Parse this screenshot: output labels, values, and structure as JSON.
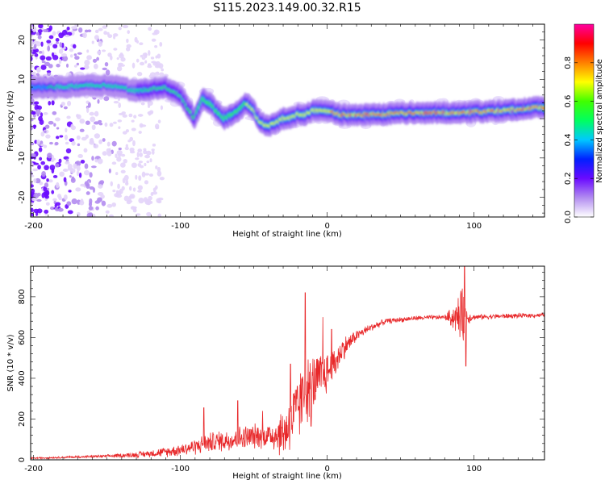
{
  "page_title": "S115.2023.149.00.32.R15",
  "chart_data": [
    {
      "type": "heatmap",
      "name": "spectrogram",
      "xlabel": "Height of straight line (km)",
      "ylabel": "Frequency (Hz)",
      "xlim": [
        -202,
        148
      ],
      "ylim": [
        -25,
        24
      ],
      "xticks": [
        -200,
        -100,
        0,
        100
      ],
      "yticks": [
        -20,
        -10,
        0,
        10,
        20
      ],
      "grid": false,
      "ridge": {
        "x": [
          -195,
          -180,
          -165,
          -150,
          -140,
          -130,
          -120,
          -110,
          -100,
          -95,
          -90,
          -85,
          -80,
          -75,
          -70,
          -65,
          -60,
          -55,
          -50,
          -45,
          -40,
          -35,
          -30,
          -25,
          -20,
          -15,
          -10,
          -5,
          0,
          10,
          30,
          60,
          90,
          120,
          148
        ],
        "y": [
          8,
          8,
          8.5,
          8.5,
          8,
          7,
          7.5,
          8,
          6,
          3,
          0,
          5,
          4,
          2,
          0,
          1,
          2,
          4,
          2,
          -1,
          -2,
          -1,
          0,
          0,
          1,
          1,
          2,
          2,
          2,
          1,
          1,
          1.5,
          1.5,
          2,
          3
        ]
      },
      "colorbar": {
        "label": "Normalized spectral amplitude",
        "range": [
          0,
          1
        ],
        "ticks": [
          "0.0",
          "0.2",
          "0.4",
          "0.6",
          "0.8"
        ],
        "tick_values": [
          0,
          0.2,
          0.4,
          0.6,
          0.8
        ],
        "colors": [
          "#ffffff",
          "#b28cf0",
          "#6a0aff",
          "#0020ff",
          "#00c8ff",
          "#00ff60",
          "#40ff00",
          "#ffff00",
          "#ff8000",
          "#ff0000",
          "#ff00a0"
        ]
      }
    },
    {
      "type": "line",
      "name": "snr",
      "xlabel": "Height of straight line (km)",
      "ylabel": "SNR (10 * v/v)",
      "xlim": [
        -202,
        148
      ],
      "ylim": [
        0,
        950
      ],
      "xticks": [
        -200,
        -100,
        0,
        100
      ],
      "yticks": [
        0,
        200,
        400,
        600,
        800
      ],
      "grid": false,
      "color": "#e8282a",
      "trend": {
        "x": [
          -202,
          -190,
          -170,
          -150,
          -130,
          -110,
          -100,
          -90,
          -80,
          -70,
          -60,
          -50,
          -40,
          -30,
          -25,
          -20,
          -15,
          -10,
          -5,
          0,
          5,
          10,
          20,
          30,
          40,
          60,
          80,
          90,
          95,
          100,
          120,
          148
        ],
        "y": [
          8,
          10,
          14,
          18,
          25,
          38,
          50,
          65,
          85,
          95,
          105,
          115,
          120,
          130,
          180,
          250,
          330,
          370,
          400,
          430,
          470,
          540,
          610,
          650,
          680,
          695,
          700,
          700,
          700,
          700,
          705,
          710
        ]
      },
      "noise": {
        "x": [
          -202,
          -150,
          -120,
          -100,
          -80,
          -60,
          -40,
          -30,
          -20,
          -10,
          0,
          10,
          20,
          40,
          80,
          88,
          92,
          96,
          100,
          148
        ],
        "amplitude": [
          4,
          8,
          20,
          35,
          55,
          70,
          70,
          140,
          200,
          170,
          120,
          70,
          30,
          15,
          12,
          90,
          160,
          40,
          15,
          12
        ]
      },
      "spikes": [
        {
          "x": -84,
          "y": 255
        },
        {
          "x": -61,
          "y": 290
        },
        {
          "x": -44,
          "y": 240
        },
        {
          "x": -25,
          "y": 470
        },
        {
          "x": -15,
          "y": 820
        },
        {
          "x": -11,
          "y": 165
        },
        {
          "x": -3,
          "y": 700
        },
        {
          "x": 3,
          "y": 640
        },
        {
          "x": 92,
          "y": 840
        },
        {
          "x": 93.5,
          "y": 960
        },
        {
          "x": 94.5,
          "y": 460
        }
      ]
    }
  ]
}
